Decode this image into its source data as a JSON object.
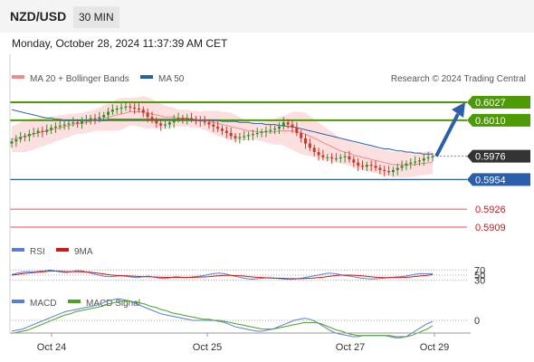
{
  "header": {
    "pair": "NZD/USD",
    "timeframe": "30 MIN"
  },
  "datetime": "Monday, October 28, 2024 11:37:39 AM CET",
  "legend": {
    "ma20": "MA 20 + Bollinger Bands",
    "ma50": "MA 50",
    "research": "Research © 2024 Trading Central"
  },
  "colors": {
    "green": "#4d9a06",
    "blue": "#2d5fa8",
    "red": "#e0505a",
    "current": "#333333",
    "candle_up": "#3d8a2a",
    "candle_down": "#c83a2a"
  },
  "chart_data": {
    "type": "candlestick",
    "pair": "NZD/USD",
    "x_labels": [
      "Oct 24",
      "Oct 25",
      "Oct 27",
      "Oct 29"
    ],
    "current_price": 0.5976,
    "levels": [
      {
        "label": "0.6027",
        "value": 0.6027,
        "kind": "resistance"
      },
      {
        "label": "0.6010",
        "value": 0.601,
        "kind": "resistance"
      },
      {
        "label": "0.5976",
        "value": 0.5976,
        "kind": "current"
      },
      {
        "label": "0.5954",
        "value": 0.5954,
        "kind": "pivot"
      },
      {
        "label": "0.5926",
        "value": 0.5926,
        "kind": "support"
      },
      {
        "label": "0.5909",
        "value": 0.5909,
        "kind": "support"
      }
    ],
    "close": [
      0.599,
      0.5992,
      0.5994,
      0.5995,
      0.5997,
      0.5998,
      0.6,
      0.5999,
      0.6001,
      0.6003,
      0.6004,
      0.6005,
      0.6006,
      0.6007,
      0.6008,
      0.6007,
      0.6009,
      0.601,
      0.6012,
      0.6011,
      0.6013,
      0.6015,
      0.6018,
      0.602,
      0.6021,
      0.6022,
      0.6023,
      0.6022,
      0.6021,
      0.602,
      0.6017,
      0.6013,
      0.601,
      0.6007,
      0.6005,
      0.6006,
      0.6008,
      0.6011,
      0.6012,
      0.6011,
      0.6012,
      0.6011,
      0.601,
      0.6009,
      0.6008,
      0.6006,
      0.6004,
      0.6002,
      0.6,
      0.5998,
      0.5995,
      0.5993,
      0.5994,
      0.5995,
      0.5996,
      0.5997,
      0.5998,
      0.5999,
      0.6,
      0.6001,
      0.6002,
      0.6004,
      0.6008,
      0.6006,
      0.6003,
      0.5998,
      0.5993,
      0.5988,
      0.5984,
      0.598,
      0.5977,
      0.5975,
      0.5975,
      0.5974,
      0.5974,
      0.5975,
      0.5976,
      0.5973,
      0.597,
      0.5967,
      0.5966,
      0.5968,
      0.5967,
      0.5965,
      0.5963,
      0.5962,
      0.5961,
      0.5963,
      0.5965,
      0.5967,
      0.5969,
      0.597,
      0.5971,
      0.5972,
      0.5974,
      0.5975,
      0.5976
    ],
    "ma20": [
      0.5992,
      0.5993,
      0.5994,
      0.5995,
      0.5996,
      0.5997,
      0.5998,
      0.5999,
      0.6,
      0.6001,
      0.6002,
      0.6003,
      0.6004,
      0.6005,
      0.6006,
      0.6007,
      0.6007,
      0.6008,
      0.6009,
      0.601,
      0.6011,
      0.6012,
      0.6013,
      0.6014,
      0.6015,
      0.6016,
      0.6017,
      0.6018,
      0.6018,
      0.6018,
      0.6018,
      0.6017,
      0.6016,
      0.6015,
      0.6014,
      0.6013,
      0.6013,
      0.6013,
      0.6012,
      0.6012,
      0.6012,
      0.6011,
      0.6011,
      0.601,
      0.601,
      0.6009,
      0.6008,
      0.6007,
      0.6006,
      0.6005,
      0.6004,
      0.6003,
      0.6002,
      0.6001,
      0.6,
      0.6,
      0.5999,
      0.5999,
      0.5999,
      0.5999,
      0.5999,
      0.6,
      0.6,
      0.6,
      0.6,
      0.5999,
      0.5998,
      0.5997,
      0.5995,
      0.5993,
      0.5991,
      0.5989,
      0.5987,
      0.5985,
      0.5983,
      0.5981,
      0.598,
      0.5979,
      0.5977,
      0.5976,
      0.5975,
      0.5974,
      0.5973,
      0.5972,
      0.5971,
      0.597,
      0.5969,
      0.5968,
      0.5968,
      0.5968,
      0.5968,
      0.5968,
      0.5968,
      0.5969,
      0.5969,
      0.597,
      0.597
    ],
    "ma50": [
      0.602,
      0.6019,
      0.6018,
      0.6017,
      0.6016,
      0.6015,
      0.6014,
      0.6013,
      0.6012,
      0.6012,
      0.6011,
      0.6011,
      0.601,
      0.601,
      0.601,
      0.601,
      0.601,
      0.601,
      0.601,
      0.601,
      0.601,
      0.601,
      0.6011,
      0.6011,
      0.6011,
      0.6011,
      0.6011,
      0.6011,
      0.6011,
      0.6011,
      0.6011,
      0.6011,
      0.6011,
      0.6011,
      0.6011,
      0.6011,
      0.6011,
      0.6011,
      0.6011,
      0.6011,
      0.6011,
      0.6011,
      0.601,
      0.601,
      0.601,
      0.601,
      0.601,
      0.601,
      0.6009,
      0.6009,
      0.6009,
      0.6009,
      0.6008,
      0.6008,
      0.6008,
      0.6007,
      0.6007,
      0.6007,
      0.6006,
      0.6006,
      0.6006,
      0.6005,
      0.6005,
      0.6004,
      0.6004,
      0.6003,
      0.6002,
      0.6001,
      0.6,
      0.5999,
      0.5998,
      0.5997,
      0.5996,
      0.5995,
      0.5994,
      0.5993,
      0.5992,
      0.5991,
      0.599,
      0.5989,
      0.5988,
      0.5987,
      0.5986,
      0.5985,
      0.5984,
      0.5983,
      0.5983,
      0.5982,
      0.5981,
      0.5981,
      0.598,
      0.598,
      0.5979,
      0.5979,
      0.5978,
      0.5978,
      0.5978
    ],
    "bb_width": [
      0.0012,
      0.0013,
      0.0014,
      0.0015,
      0.0015,
      0.0015,
      0.0014,
      0.0014,
      0.0013,
      0.0013,
      0.0012,
      0.0012,
      0.0011,
      0.0011,
      0.001,
      0.001,
      0.001,
      0.001,
      0.001,
      0.001,
      0.0011,
      0.0012,
      0.0013,
      0.0014,
      0.0015,
      0.0015,
      0.0014,
      0.0013,
      0.0013,
      0.0014,
      0.0015,
      0.0015,
      0.0014,
      0.0013,
      0.0012,
      0.0011,
      0.001,
      0.0009,
      0.0008,
      0.0008,
      0.0008,
      0.0008,
      0.0008,
      0.0008,
      0.0009,
      0.001,
      0.0011,
      0.0012,
      0.0012,
      0.0013,
      0.0013,
      0.0012,
      0.0011,
      0.001,
      0.0009,
      0.0008,
      0.0008,
      0.0009,
      0.001,
      0.0011,
      0.0012,
      0.0013,
      0.0014,
      0.0016,
      0.0018,
      0.0019,
      0.002,
      0.002,
      0.0019,
      0.0018,
      0.0017,
      0.0016,
      0.0015,
      0.0014,
      0.0013,
      0.0012,
      0.0012,
      0.0012,
      0.0012,
      0.0012,
      0.0012,
      0.0012,
      0.0012,
      0.0012,
      0.0012,
      0.0012,
      0.0012,
      0.0012,
      0.0012,
      0.0012,
      0.0012,
      0.0012,
      0.0011,
      0.0011,
      0.0011,
      0.0011,
      0.0011
    ],
    "arrow": {
      "from_value": 0.5976,
      "to_value": 0.6027
    },
    "rsi": {
      "label": "RSI",
      "ma_label": "9MA",
      "levels": [
        70,
        50,
        30
      ],
      "values": [
        52,
        58,
        62,
        64,
        63,
        65,
        67,
        70,
        66,
        62,
        60,
        64,
        68,
        66,
        60,
        55,
        50,
        45,
        44,
        46,
        48,
        45,
        42,
        40,
        44,
        46,
        42,
        38,
        36,
        40,
        44,
        42,
        40,
        43,
        45,
        48,
        52,
        56,
        58,
        55,
        50,
        45,
        40,
        36,
        34,
        36,
        38,
        40,
        38,
        36,
        34,
        33,
        35,
        38,
        42,
        46,
        50,
        54,
        58,
        56,
        52,
        48,
        46,
        42,
        38,
        36,
        35,
        36,
        38,
        40,
        42,
        44,
        46,
        50,
        54,
        56,
        55,
        56
      ],
      "ma_values": [
        50,
        53,
        56,
        58,
        60,
        62,
        64,
        66,
        66,
        65,
        64,
        64,
        64,
        63,
        62,
        60,
        57,
        54,
        51,
        49,
        48,
        47,
        46,
        45,
        44,
        44,
        43,
        42,
        41,
        41,
        41,
        41,
        41,
        41,
        42,
        43,
        44,
        46,
        48,
        49,
        49,
        48,
        47,
        45,
        43,
        41,
        40,
        39,
        38,
        38,
        37,
        36,
        36,
        36,
        37,
        38,
        40,
        42,
        45,
        48,
        50,
        50,
        50,
        49,
        47,
        45,
        43,
        41,
        40,
        40,
        40,
        40,
        41,
        43,
        45,
        47,
        49,
        52
      ]
    },
    "macd": {
      "label": "MACD",
      "signal_label": "MACD Signal",
      "level": 0,
      "values": [
        -0.001,
        -0.0009,
        -0.0008,
        -0.0006,
        -0.0004,
        -0.0002,
        0.0,
        0.0002,
        0.0004,
        0.0006,
        0.0008,
        0.0009,
        0.001,
        0.0011,
        0.0012,
        0.0013,
        0.0014,
        0.0016,
        0.0018,
        0.0019,
        0.002,
        0.0019,
        0.0018,
        0.0016,
        0.0014,
        0.0012,
        0.001,
        0.0008,
        0.0006,
        0.0005,
        0.0004,
        0.0003,
        0.0002,
        0.0001,
        0.0,
        0.0,
        0.0,
        0.0,
        0.0,
        -0.0001,
        -0.0002,
        -0.0004,
        -0.0006,
        -0.0007,
        -0.0008,
        -0.0009,
        -0.001,
        -0.001,
        -0.0009,
        -0.0008,
        -0.0006,
        -0.0004,
        -0.0002,
        0.0,
        0.0001,
        0.0002,
        0.0001,
        -0.0001,
        -0.0004,
        -0.0007,
        -0.001,
        -0.0012,
        -0.0013,
        -0.0014,
        -0.0015,
        -0.0015,
        -0.0014,
        -0.0014,
        -0.0014,
        -0.0014,
        -0.0014,
        -0.0015,
        -0.0016,
        -0.0016,
        -0.0015,
        -0.0012,
        -0.0009,
        -0.0006,
        -0.0003,
        -0.0001
      ],
      "signal_values": [
        -0.0012,
        -0.0011,
        -0.001,
        -0.0009,
        -0.0007,
        -0.0005,
        -0.0003,
        -0.0001,
        0.0001,
        0.0003,
        0.0005,
        0.0006,
        0.0008,
        0.0009,
        0.001,
        0.0011,
        0.0012,
        0.0013,
        0.0015,
        0.0016,
        0.0017,
        0.0018,
        0.0018,
        0.0017,
        0.0016,
        0.0015,
        0.0013,
        0.0012,
        0.001,
        0.0009,
        0.0007,
        0.0006,
        0.0005,
        0.0004,
        0.0003,
        0.0002,
        0.0001,
        0.0001,
        0.0,
        0.0,
        -0.0001,
        -0.0002,
        -0.0003,
        -0.0004,
        -0.0005,
        -0.0006,
        -0.0007,
        -0.0008,
        -0.0008,
        -0.0008,
        -0.0007,
        -0.0006,
        -0.0005,
        -0.0004,
        -0.0003,
        -0.0002,
        -0.0002,
        -0.0002,
        -0.0003,
        -0.0005,
        -0.0007,
        -0.0009,
        -0.001,
        -0.0012,
        -0.0013,
        -0.0014,
        -0.0014,
        -0.0014,
        -0.0014,
        -0.0014,
        -0.0014,
        -0.0014,
        -0.0015,
        -0.0015,
        -0.0015,
        -0.0014,
        -0.0012,
        -0.001,
        -0.0008,
        -0.0005
      ]
    }
  }
}
